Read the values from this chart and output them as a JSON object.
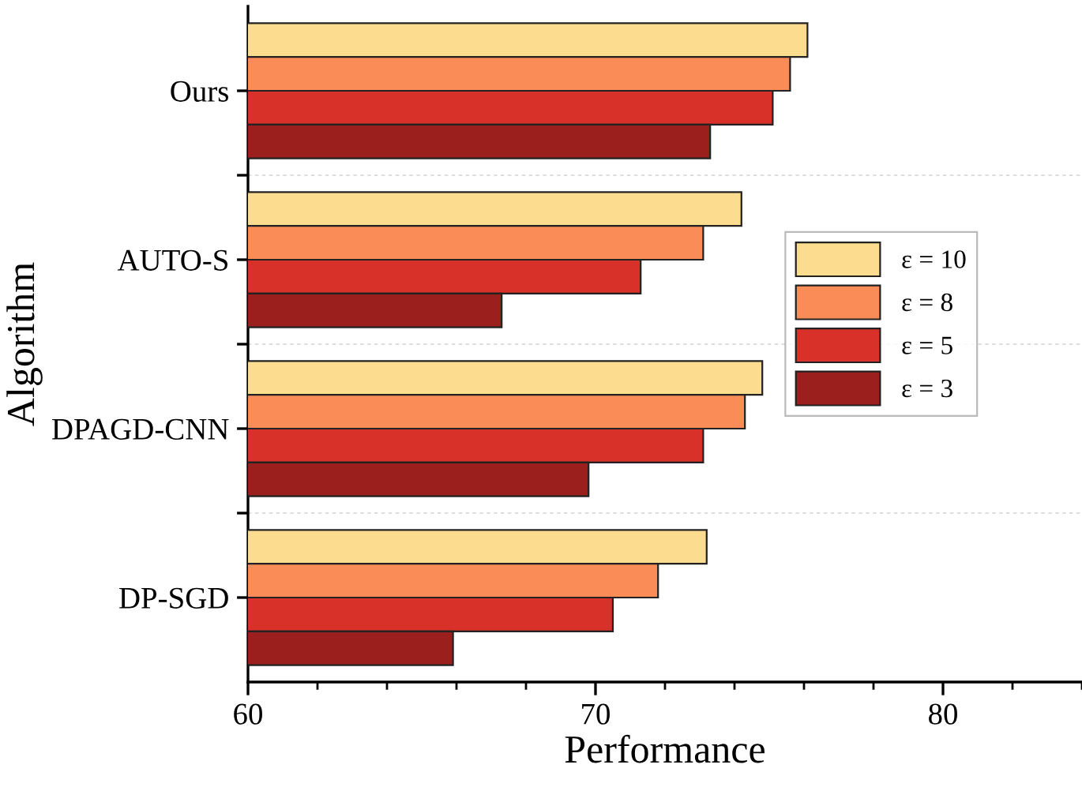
{
  "chart_data": {
    "type": "bar",
    "orientation": "horizontal",
    "xlabel": "Performance",
    "ylabel": "Algorithm",
    "categories": [
      "Ours",
      "AUTO-S",
      "DPAGD-CNN",
      "DP-SGD"
    ],
    "series": [
      {
        "name": "ε = 10",
        "color": "#fcdc8e",
        "values": [
          76.1,
          74.2,
          74.8,
          73.2
        ]
      },
      {
        "name": "ε = 8",
        "color": "#f98c57",
        "values": [
          75.6,
          73.1,
          74.3,
          71.8
        ]
      },
      {
        "name": "ε = 5",
        "color": "#d8312a",
        "values": [
          75.1,
          71.3,
          73.1,
          70.5
        ]
      },
      {
        "name": "ε = 3",
        "color": "#9a1f1d",
        "values": [
          73.3,
          67.3,
          69.8,
          65.9
        ]
      }
    ],
    "xlim": [
      60,
      84
    ],
    "xticks": [
      60,
      {
        "value": 62,
        "label": null
      },
      {
        "value": 64,
        "label": null
      },
      {
        "value": 66,
        "label": null
      },
      {
        "value": 68,
        "label": null
      },
      70,
      {
        "value": 72,
        "label": null
      },
      {
        "value": 74,
        "label": null
      },
      {
        "value": 76,
        "label": null
      },
      {
        "value": 78,
        "label": null
      },
      80,
      {
        "value": 82,
        "label": null
      },
      {
        "value": 84,
        "label": null
      }
    ],
    "grid": "y",
    "legend": "right"
  }
}
